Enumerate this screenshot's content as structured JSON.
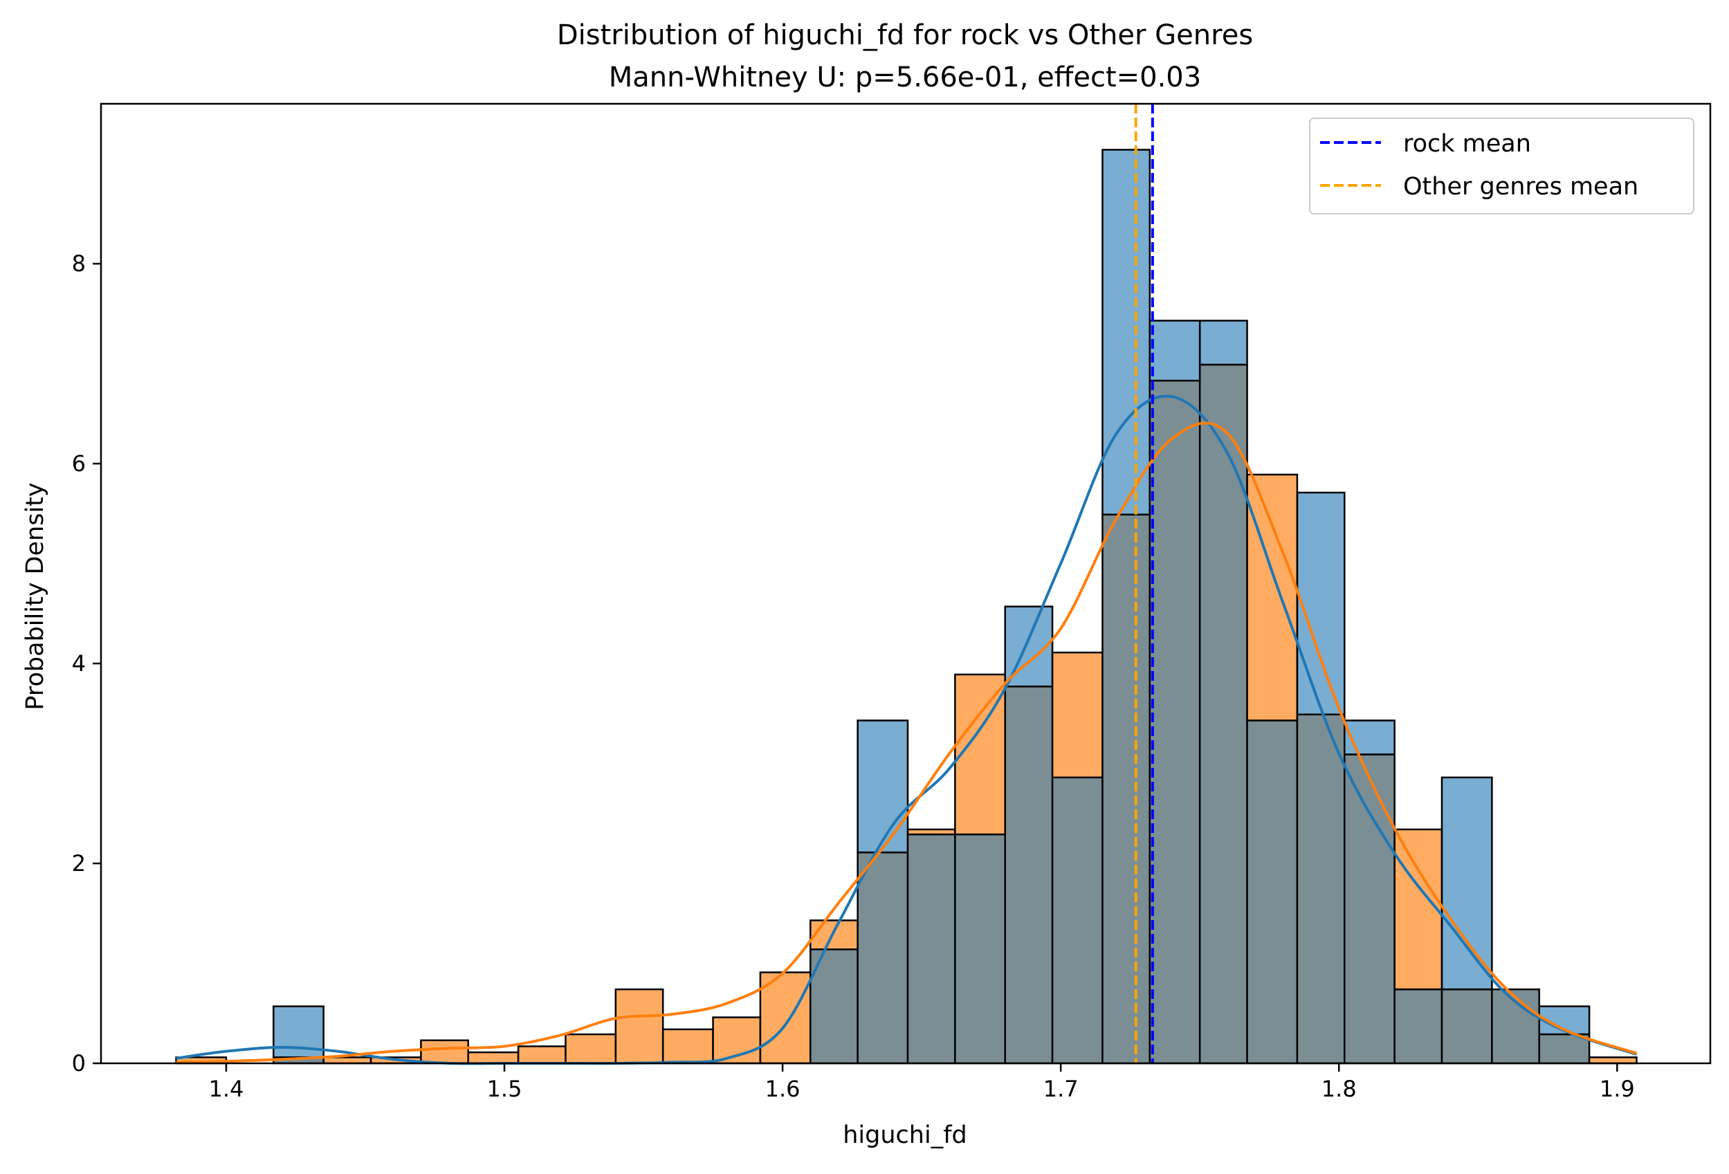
{
  "chart_data": {
    "type": "histogram",
    "title": "Distribution of higuchi_fd for rock vs Other Genres",
    "subtitle": "Mann-Whitney U: p=5.66e-01, effect=0.03",
    "xlabel": "higuchi_fd",
    "ylabel": "Probability Density",
    "xlim": [
      1.355,
      1.9335
    ],
    "ylim": [
      0,
      9.6
    ],
    "x_ticks": [
      1.4,
      1.5,
      1.6,
      1.7,
      1.8,
      1.9
    ],
    "x_tick_labels": [
      "1.4",
      "1.5",
      "1.6",
      "1.7",
      "1.8",
      "1.9"
    ],
    "y_ticks": [
      0,
      2,
      4,
      6,
      8
    ],
    "y_tick_labels": [
      "0",
      "2",
      "4",
      "6",
      "8"
    ],
    "bin_edges": [
      1.382,
      1.4,
      1.417,
      1.435,
      1.452,
      1.47,
      1.487,
      1.505,
      1.522,
      1.54,
      1.557,
      1.575,
      1.592,
      1.61,
      1.627,
      1.645,
      1.662,
      1.68,
      1.697,
      1.715,
      1.732,
      1.75,
      1.767,
      1.785,
      1.802,
      1.82,
      1.837,
      1.855,
      1.872,
      1.89,
      1.907
    ],
    "series": [
      {
        "name": "rock",
        "color": "#1f77b4",
        "density": [
          0,
          0,
          0.57,
          0,
          0,
          0,
          0,
          0,
          0,
          0,
          0,
          0,
          0,
          1.14,
          3.43,
          2.29,
          2.29,
          4.57,
          2.86,
          9.14,
          7.43,
          7.43,
          3.43,
          5.71,
          3.43,
          0.74,
          2.86,
          0.74,
          0.57,
          0
        ],
        "mean": 1.733
      },
      {
        "name": "Other genres",
        "color": "#ff7f0e",
        "density": [
          0.06,
          0,
          0.06,
          0.06,
          0.06,
          0.23,
          0.11,
          0.17,
          0.29,
          0.74,
          0.34,
          0.46,
          0.91,
          1.43,
          2.11,
          2.34,
          3.89,
          3.77,
          4.11,
          5.49,
          6.83,
          6.99,
          5.89,
          3.49,
          3.09,
          2.34,
          0.74,
          0.74,
          0.29,
          0.06
        ],
        "mean": 1.727
      }
    ],
    "kde": [
      {
        "series": "rock",
        "color": "#1f77b4",
        "x": [
          1.382,
          1.4,
          1.42,
          1.44,
          1.46,
          1.48,
          1.5,
          1.52,
          1.54,
          1.56,
          1.58,
          1.6,
          1.62,
          1.64,
          1.66,
          1.68,
          1.7,
          1.72,
          1.74,
          1.76,
          1.78,
          1.8,
          1.82,
          1.84,
          1.86,
          1.88,
          1.907
        ],
        "y": [
          0.05,
          0.12,
          0.16,
          0.12,
          0.04,
          0.0,
          0.0,
          0.0,
          0.0,
          0.01,
          0.05,
          0.35,
          1.4,
          2.4,
          2.95,
          3.75,
          5.0,
          6.3,
          6.67,
          6.1,
          4.6,
          3.1,
          2.1,
          1.38,
          0.7,
          0.34,
          0.09
        ]
      },
      {
        "series": "Other genres",
        "color": "#ff7f0e",
        "x": [
          1.382,
          1.4,
          1.42,
          1.44,
          1.46,
          1.48,
          1.5,
          1.52,
          1.54,
          1.56,
          1.58,
          1.6,
          1.62,
          1.64,
          1.66,
          1.68,
          1.7,
          1.72,
          1.74,
          1.76,
          1.78,
          1.8,
          1.82,
          1.84,
          1.86,
          1.88,
          1.907
        ],
        "y": [
          0.01,
          0.02,
          0.04,
          0.07,
          0.12,
          0.15,
          0.17,
          0.28,
          0.45,
          0.49,
          0.6,
          0.9,
          1.6,
          2.3,
          3.1,
          3.8,
          4.35,
          5.45,
          6.25,
          6.3,
          5.1,
          3.55,
          2.35,
          1.45,
          0.75,
          0.35,
          0.1
        ]
      }
    ],
    "overlap_color": "#7a8e94",
    "mean_lines": [
      {
        "label": "rock mean",
        "x": 1.733,
        "color": "#0000ff",
        "style": "dashed"
      },
      {
        "label": "Other genres mean",
        "x": 1.727,
        "color": "#ffa500",
        "style": "dashed"
      }
    ],
    "legend_position": "top-right",
    "grid": false
  }
}
